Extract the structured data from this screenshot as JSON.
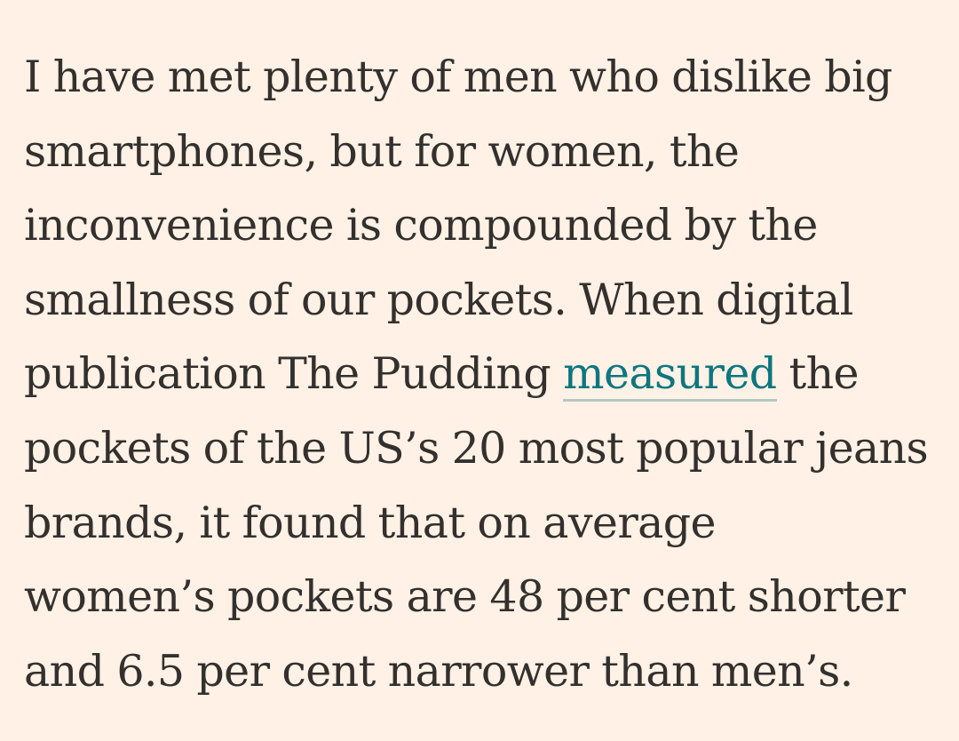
{
  "article": {
    "paragraph": {
      "line1": "I have met plenty of men who dislike big",
      "line2": "smartphones, but for women, the",
      "line3": "inconvenience is compounded by the",
      "line4": "smallness of our pockets. When digital",
      "line5_before": "publication The Pudding ",
      "link_text": "measured",
      "line5_after": " the",
      "line6": "pockets of the US’s 20 most popular jeans",
      "line7": "brands, it found that on average",
      "line8": "women’s pockets are 48 per cent shorter",
      "line9": "and 6.5 per cent narrower than men’s."
    }
  },
  "colors": {
    "background": "#fff1e5",
    "text": "#33302e",
    "link": "#0d7680",
    "link_underline": "#b7c6c2"
  }
}
